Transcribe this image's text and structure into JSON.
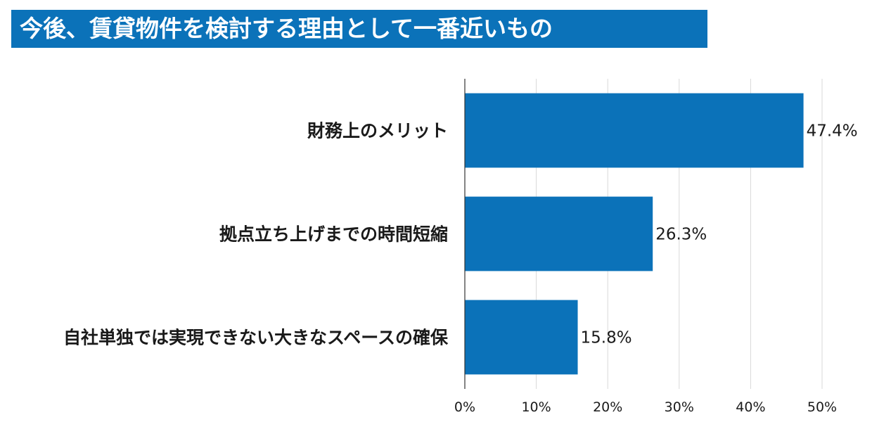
{
  "chart_data": {
    "type": "bar",
    "orientation": "horizontal",
    "title": "今後、賃貸物件を検討する理由として一番近いもの",
    "categories": [
      "財務上のメリット",
      "拠点立ち上げまでの時間短縮",
      "自社単独では実現できない大きなスペースの確保"
    ],
    "values": [
      47.4,
      26.3,
      15.8
    ],
    "value_labels": [
      "47.4%",
      "26.3%",
      "15.8%"
    ],
    "xlim": [
      0,
      50
    ],
    "xticks": [
      0,
      10,
      20,
      30,
      40,
      50
    ],
    "xtick_labels": [
      "0%",
      "10%",
      "20%",
      "30%",
      "40%",
      "50%"
    ],
    "grid": true,
    "bar_color": "#0b72b9",
    "title_bg_color": "#0b72b9"
  }
}
